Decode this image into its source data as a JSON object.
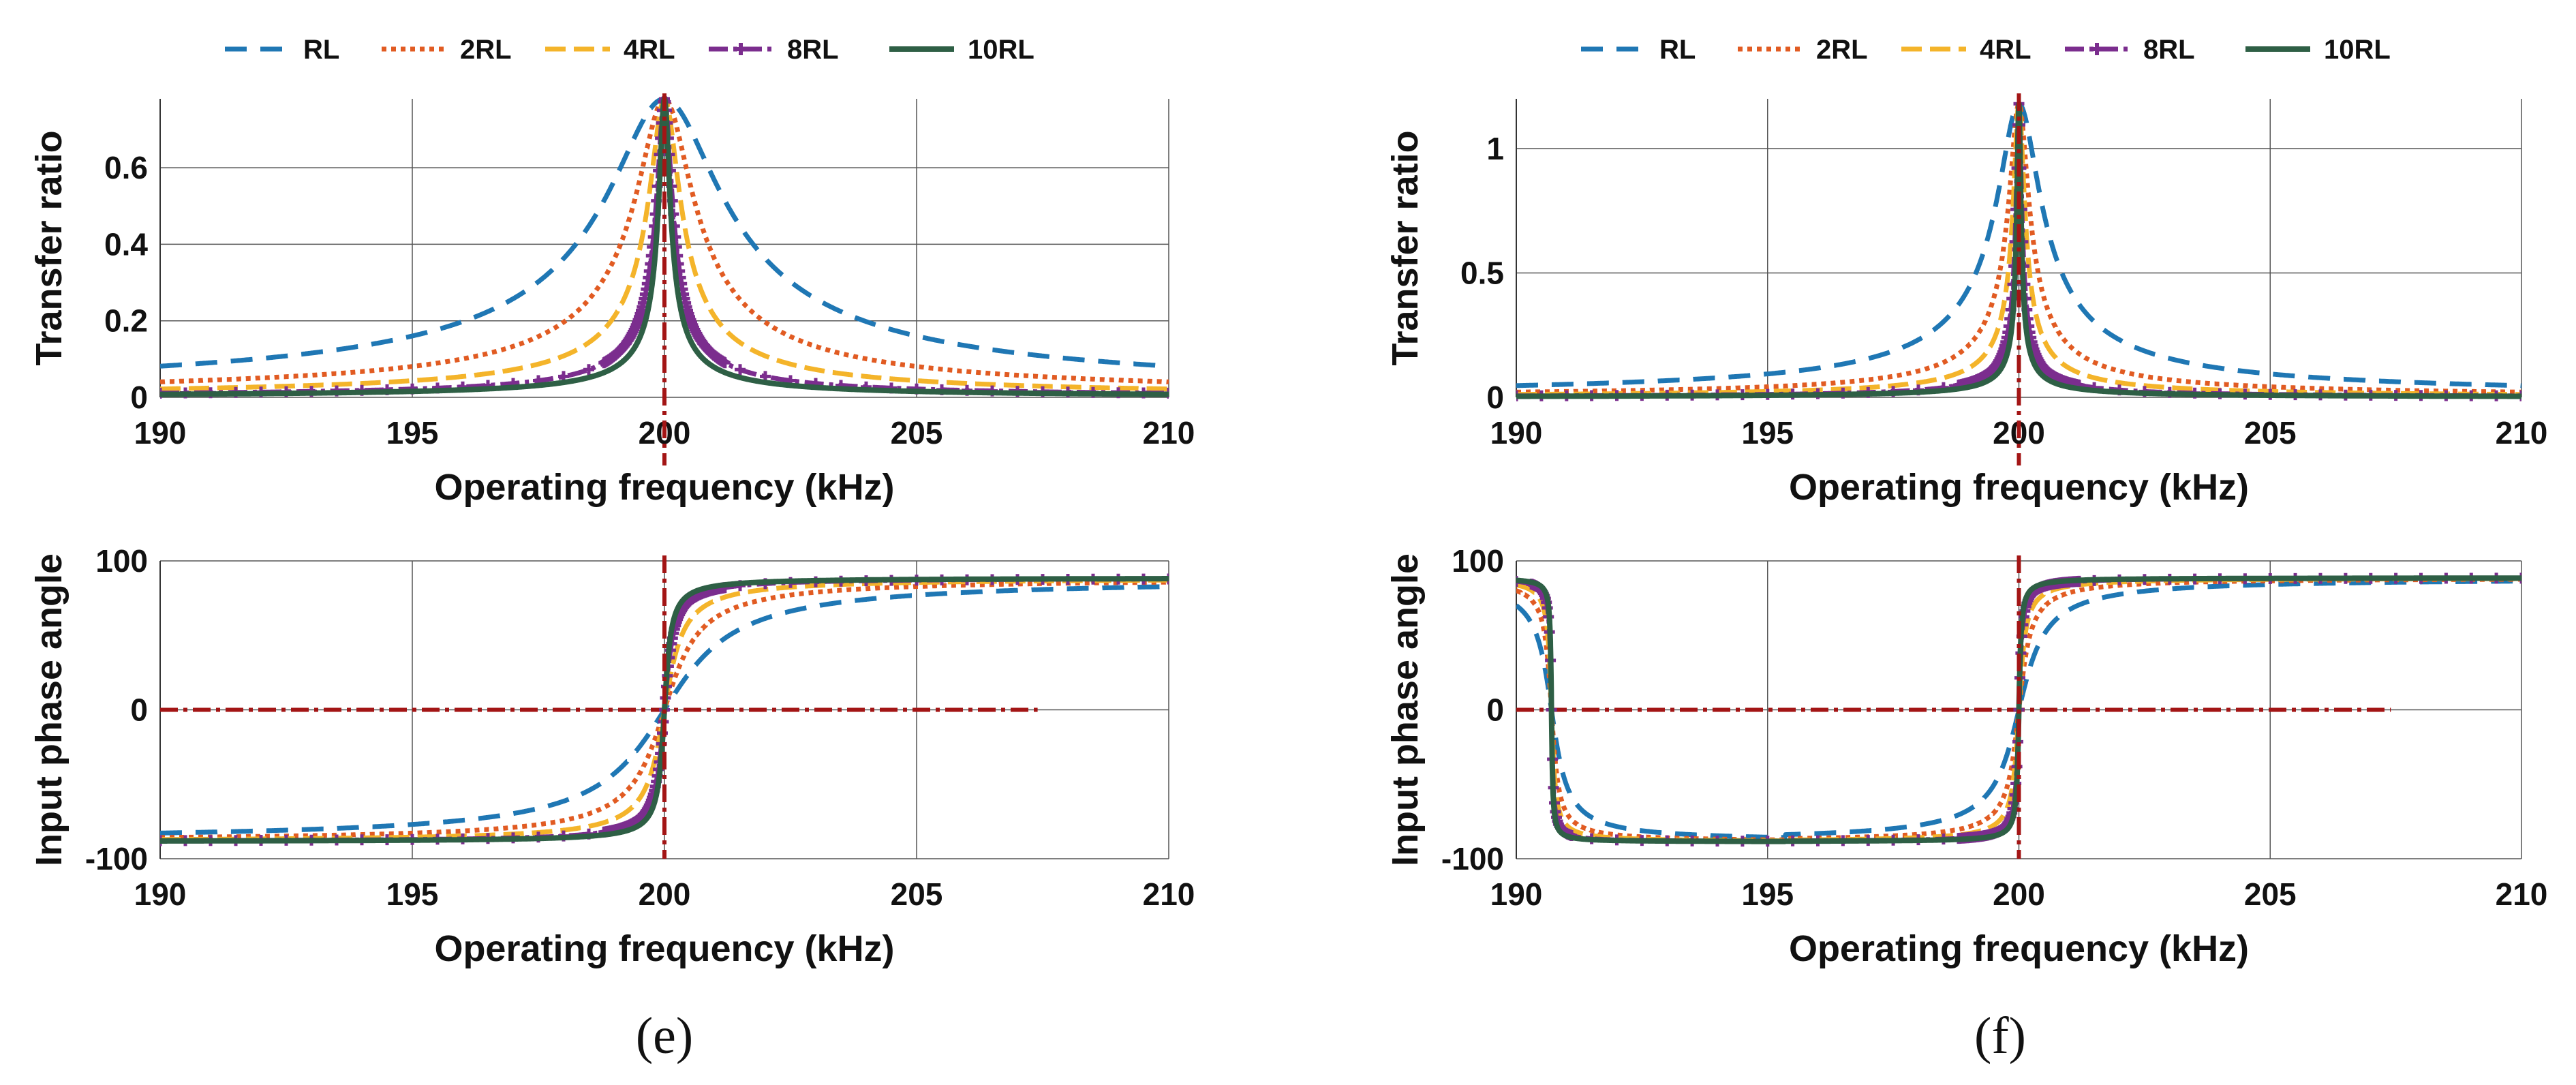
{
  "series_styles": [
    {
      "name": "RL",
      "color": "#1F77B4",
      "dash": "32,20",
      "width": 7,
      "marker": false
    },
    {
      "name": "2RL",
      "color": "#E15B22",
      "dash": "7,7",
      "width": 7,
      "marker": false
    },
    {
      "name": "4RL",
      "color": "#F4B42A",
      "dash": "30,12",
      "width": 7,
      "marker": false
    },
    {
      "name": "8RL",
      "color": "#7B2D8E",
      "dash": "28,8,6,8",
      "width": 7,
      "marker": true
    },
    {
      "name": "10RL",
      "color": "#2E5F45",
      "dash": "",
      "width": 8,
      "marker": false
    }
  ],
  "reference_color": "#A31515",
  "chart_data": [
    {
      "type": "line",
      "panel": "(e)",
      "subplots": [
        {
          "title": "",
          "xlabel": "Operating frequency (kHz)",
          "ylabel": "Transfer ratio",
          "xlim": [
            190,
            210
          ],
          "ylim": [
            0,
            0.78
          ],
          "xticks": [
            190,
            195,
            200,
            205,
            210
          ],
          "yticks": [
            0,
            0.2,
            0.4,
            0.6
          ],
          "ytick_labels": [
            "0",
            "0.2",
            "0.4",
            "0.6"
          ],
          "grid": true,
          "model": "resonance",
          "peak": 0.78,
          "f0": 200,
          "widths": [
            1.05,
            0.52,
            0.28,
            0.14,
            0.1
          ],
          "vline_x": 200
        },
        {
          "title": "",
          "xlabel": "Operating frequency (kHz)",
          "ylabel": "Input phase angle",
          "xlim": [
            190,
            210
          ],
          "ylim": [
            -100,
            100
          ],
          "xticks": [
            190,
            195,
            200,
            205,
            210
          ],
          "yticks": [
            -100,
            0,
            100
          ],
          "ytick_labels": [
            "-100",
            "0",
            "100"
          ],
          "grid": true,
          "model": "phase",
          "f0": 200,
          "widths": [
            1.05,
            0.52,
            0.28,
            0.14,
            0.1
          ],
          "vline_x": 200,
          "hline_y": 0,
          "hline_x_end": 207.4
        }
      ]
    },
    {
      "type": "line",
      "panel": "(f)",
      "subplots": [
        {
          "title": "",
          "xlabel": "Operating frequency (kHz)",
          "ylabel": "Transfer ratio",
          "xlim": [
            190,
            210
          ],
          "ylim": [
            0,
            1.2
          ],
          "xticks": [
            190,
            195,
            200,
            205,
            210
          ],
          "yticks": [
            0,
            0.5,
            1
          ],
          "ytick_labels": [
            "0",
            "0.5",
            "1"
          ],
          "grid": true,
          "model": "resonance",
          "peak": 1.18,
          "f0": 200,
          "widths": [
            0.4,
            0.18,
            0.1,
            0.05,
            0.035
          ],
          "vline_x": 200
        },
        {
          "title": "",
          "xlabel": "Operating frequency (kHz)",
          "ylabel": "Input phase angle",
          "xlim": [
            190,
            210
          ],
          "ylim": [
            -100,
            100
          ],
          "xticks": [
            190,
            195,
            200,
            205,
            210
          ],
          "yticks": [
            -100,
            0,
            100
          ],
          "ytick_labels": [
            "-100",
            "0",
            "100"
          ],
          "grid": true,
          "model": "phase2",
          "f0": 200,
          "f1": 190.7,
          "widths": [
            0.4,
            0.18,
            0.1,
            0.05,
            0.035
          ],
          "vline_x": 200,
          "hline_y": 0,
          "hline_x_end": 207.4
        }
      ]
    }
  ]
}
